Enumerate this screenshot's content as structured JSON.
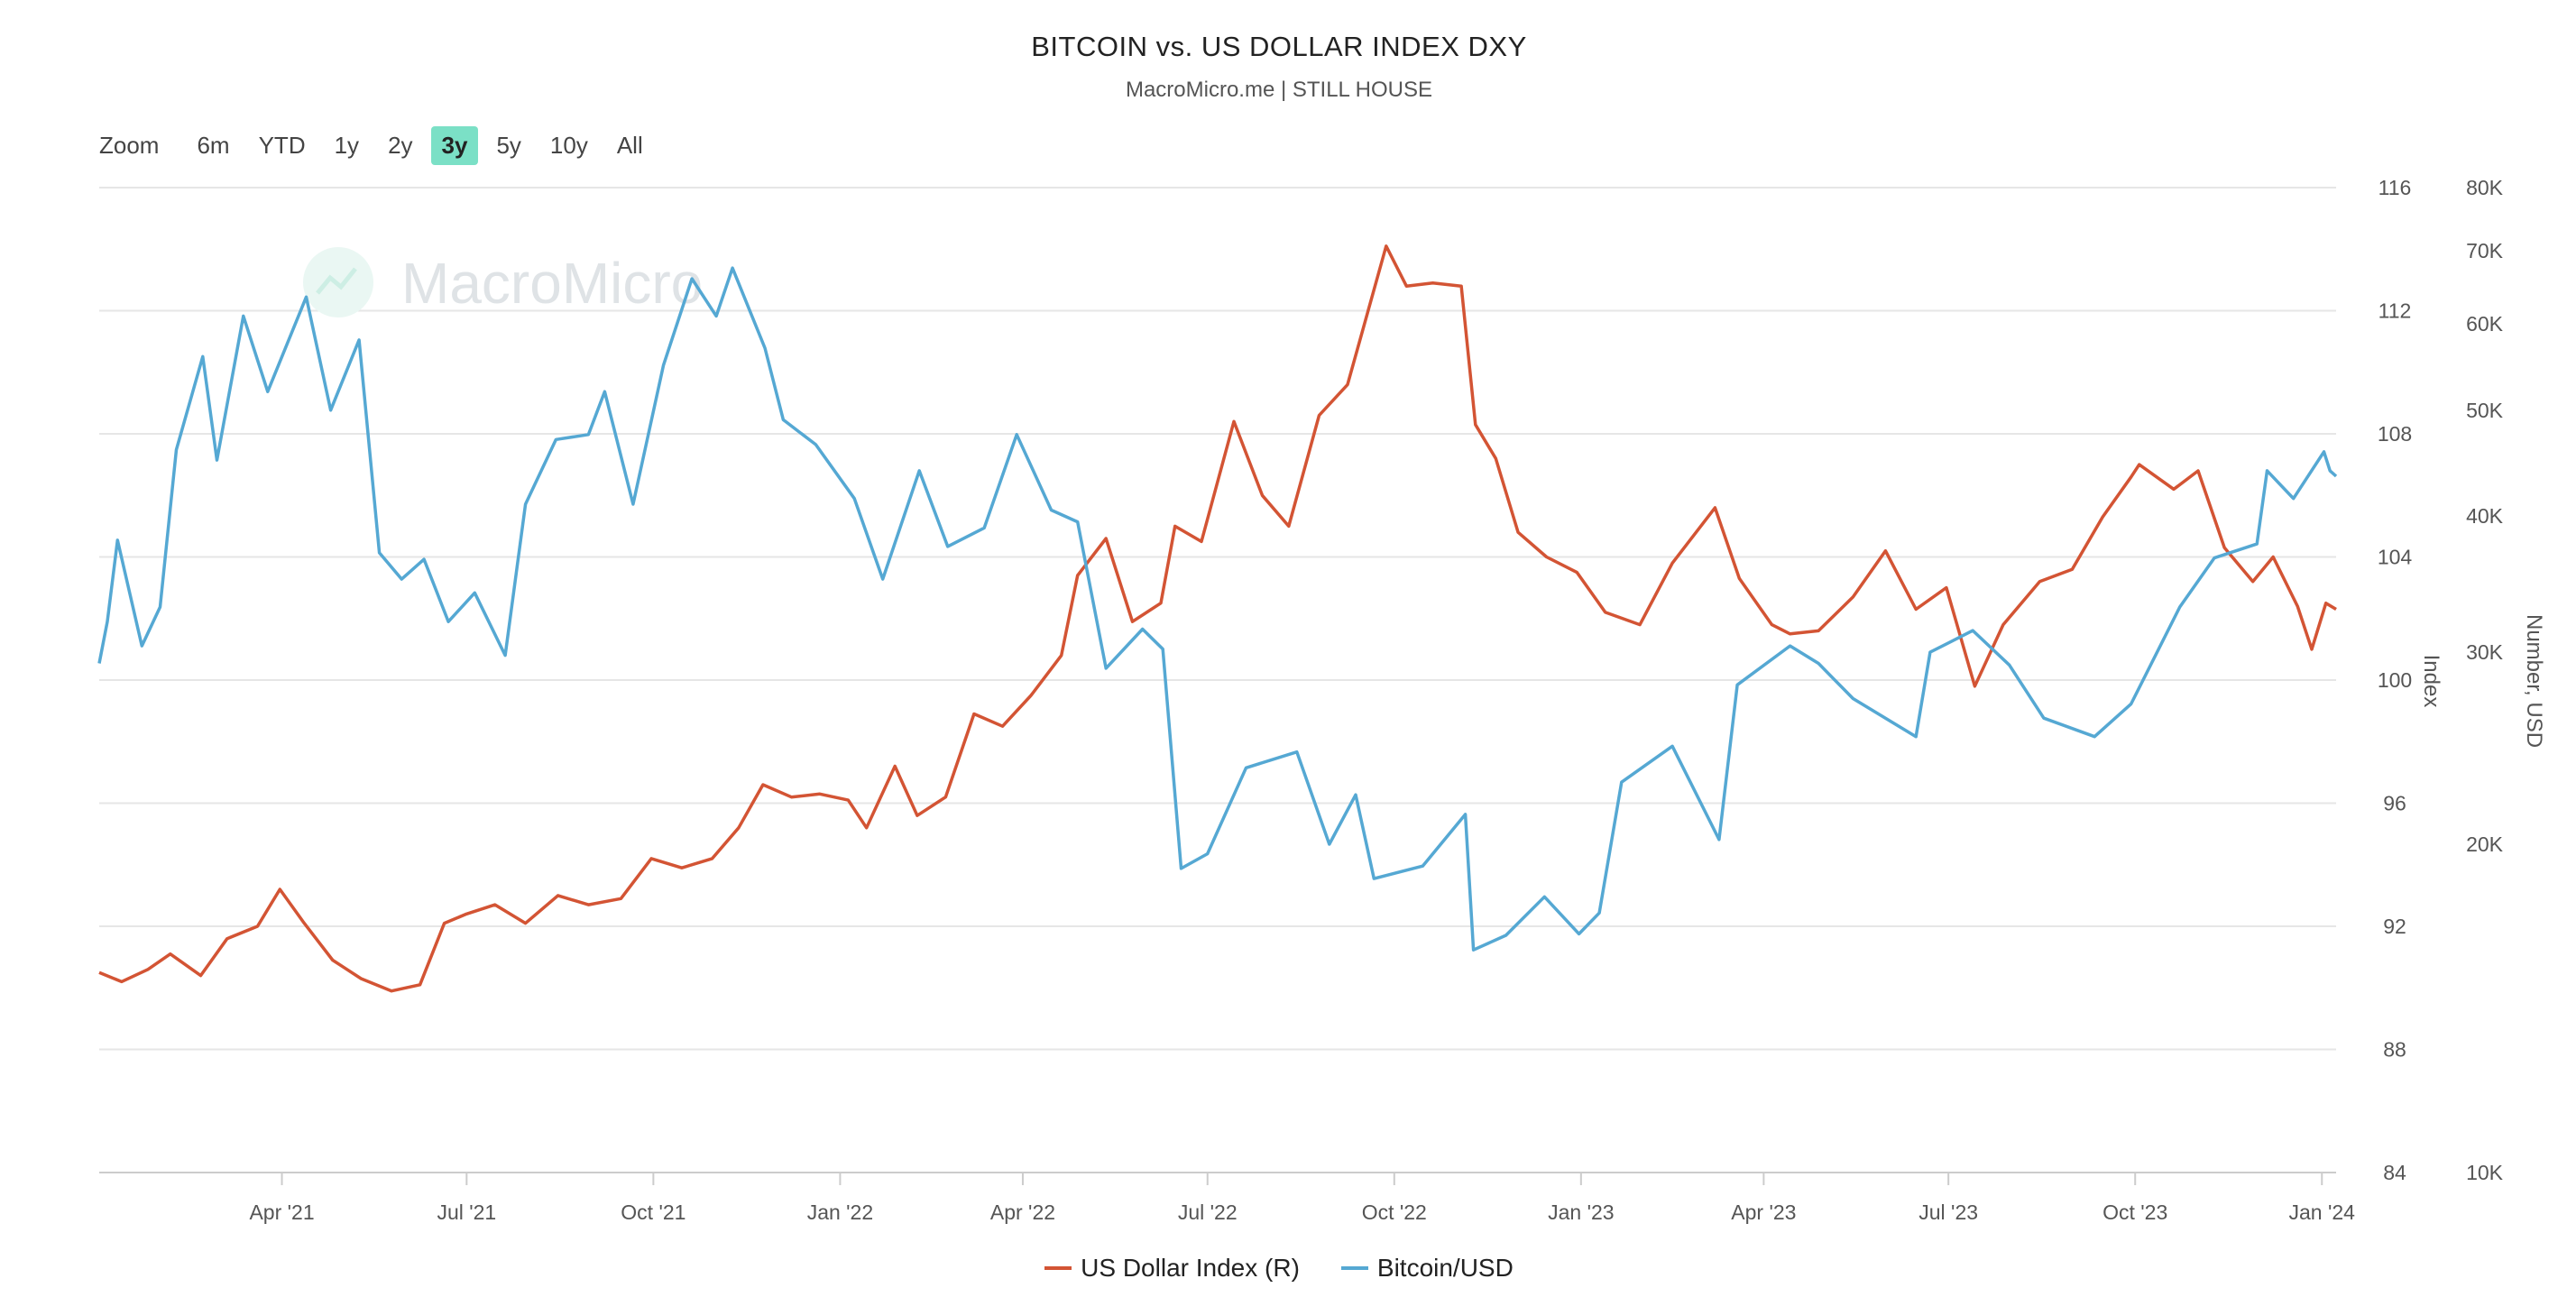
{
  "header": {
    "title": "BITCOIN vs. US DOLLAR INDEX DXY",
    "subtitle": "MacroMicro.me | STILL HOUSE"
  },
  "watermark": {
    "text": "MacroMicro",
    "icon": "macromicro-logo-icon"
  },
  "zoom": {
    "label": "Zoom",
    "options": [
      "6m",
      "YTD",
      "1y",
      "2y",
      "3y",
      "5y",
      "10y",
      "All"
    ],
    "selected": "3y"
  },
  "legend": [
    {
      "label": "US Dollar Index (R)",
      "color": "#d35434"
    },
    {
      "label": "Bitcoin/USD",
      "color": "#55a8d3"
    }
  ],
  "chart_data": {
    "type": "line",
    "x_ticks": [
      {
        "label": "Apr '21",
        "date": "2021-04-01"
      },
      {
        "label": "Jul '21",
        "date": "2021-07-01"
      },
      {
        "label": "Oct '21",
        "date": "2021-10-01"
      },
      {
        "label": "Jan '22",
        "date": "2022-01-01"
      },
      {
        "label": "Apr '22",
        "date": "2022-04-01"
      },
      {
        "label": "Jul '22",
        "date": "2022-07-01"
      },
      {
        "label": "Oct '22",
        "date": "2022-10-01"
      },
      {
        "label": "Jan '23",
        "date": "2023-01-01"
      },
      {
        "label": "Apr '23",
        "date": "2023-04-01"
      },
      {
        "label": "Jul '23",
        "date": "2023-07-01"
      },
      {
        "label": "Oct '23",
        "date": "2023-10-01"
      },
      {
        "label": "Jan '24",
        "date": "2024-01-01"
      }
    ],
    "xlim": [
      "2021-01-01",
      "2024-01-08"
    ],
    "y_left": {
      "title": "Index",
      "ticks": [
        84,
        88,
        92,
        96,
        100,
        104,
        108,
        112,
        116
      ],
      "range": [
        84,
        116
      ],
      "scale": "linear"
    },
    "y_right": {
      "title": "Number, USD",
      "ticks": [
        {
          "label": "10K",
          "value": 10000
        },
        {
          "label": "20K",
          "value": 20000
        },
        {
          "label": "30K",
          "value": 30000
        },
        {
          "label": "40K",
          "value": 40000
        },
        {
          "label": "50K",
          "value": 50000
        },
        {
          "label": "60K",
          "value": 60000
        },
        {
          "label": "70K",
          "value": 70000
        },
        {
          "label": "80K",
          "value": 80000
        }
      ],
      "range": [
        10000,
        80000
      ],
      "scale": "log"
    },
    "grid": true,
    "series": [
      {
        "name": "US Dollar Index (R)",
        "axis": "left",
        "color": "#d35434",
        "points": [
          [
            "2021-01-01",
            90.5
          ],
          [
            "2021-01-12",
            90.2
          ],
          [
            "2021-01-25",
            90.6
          ],
          [
            "2021-02-05",
            91.1
          ],
          [
            "2021-02-20",
            90.4
          ],
          [
            "2021-03-05",
            91.6
          ],
          [
            "2021-03-20",
            92.0
          ],
          [
            "2021-03-31",
            93.2
          ],
          [
            "2021-04-12",
            92.1
          ],
          [
            "2021-04-26",
            90.9
          ],
          [
            "2021-05-10",
            90.3
          ],
          [
            "2021-05-25",
            89.9
          ],
          [
            "2021-06-08",
            90.1
          ],
          [
            "2021-06-20",
            92.1
          ],
          [
            "2021-07-01",
            92.4
          ],
          [
            "2021-07-15",
            92.7
          ],
          [
            "2021-07-30",
            92.1
          ],
          [
            "2021-08-15",
            93.0
          ],
          [
            "2021-08-30",
            92.7
          ],
          [
            "2021-09-15",
            92.9
          ],
          [
            "2021-09-30",
            94.2
          ],
          [
            "2021-10-15",
            93.9
          ],
          [
            "2021-10-30",
            94.2
          ],
          [
            "2021-11-12",
            95.2
          ],
          [
            "2021-11-24",
            96.6
          ],
          [
            "2021-12-08",
            96.2
          ],
          [
            "2021-12-22",
            96.3
          ],
          [
            "2022-01-05",
            96.1
          ],
          [
            "2022-01-14",
            95.2
          ],
          [
            "2022-01-28",
            97.2
          ],
          [
            "2022-02-08",
            95.6
          ],
          [
            "2022-02-22",
            96.2
          ],
          [
            "2022-03-08",
            98.9
          ],
          [
            "2022-03-22",
            98.5
          ],
          [
            "2022-04-05",
            99.5
          ],
          [
            "2022-04-20",
            100.8
          ],
          [
            "2022-04-28",
            103.4
          ],
          [
            "2022-05-12",
            104.6
          ],
          [
            "2022-05-25",
            101.9
          ],
          [
            "2022-06-08",
            102.5
          ],
          [
            "2022-06-15",
            105.0
          ],
          [
            "2022-06-28",
            104.5
          ],
          [
            "2022-07-14",
            108.4
          ],
          [
            "2022-07-28",
            106.0
          ],
          [
            "2022-08-10",
            105.0
          ],
          [
            "2022-08-25",
            108.6
          ],
          [
            "2022-09-08",
            109.6
          ],
          [
            "2022-09-27",
            114.1
          ],
          [
            "2022-10-07",
            112.8
          ],
          [
            "2022-10-20",
            112.9
          ],
          [
            "2022-11-03",
            112.8
          ],
          [
            "2022-11-10",
            108.3
          ],
          [
            "2022-11-20",
            107.2
          ],
          [
            "2022-12-01",
            104.8
          ],
          [
            "2022-12-15",
            104.0
          ],
          [
            "2022-12-30",
            103.5
          ],
          [
            "2023-01-13",
            102.2
          ],
          [
            "2023-01-30",
            101.8
          ],
          [
            "2023-02-15",
            103.8
          ],
          [
            "2023-03-08",
            105.6
          ],
          [
            "2023-03-20",
            103.3
          ],
          [
            "2023-04-05",
            101.8
          ],
          [
            "2023-04-14",
            101.5
          ],
          [
            "2023-04-28",
            101.6
          ],
          [
            "2023-05-15",
            102.7
          ],
          [
            "2023-05-31",
            104.2
          ],
          [
            "2023-06-15",
            102.3
          ],
          [
            "2023-06-30",
            103.0
          ],
          [
            "2023-07-14",
            99.8
          ],
          [
            "2023-07-28",
            101.8
          ],
          [
            "2023-08-15",
            103.2
          ],
          [
            "2023-08-31",
            103.6
          ],
          [
            "2023-09-15",
            105.3
          ],
          [
            "2023-09-29",
            106.6
          ],
          [
            "2023-10-03",
            107.0
          ],
          [
            "2023-10-20",
            106.2
          ],
          [
            "2023-11-01",
            106.8
          ],
          [
            "2023-11-14",
            104.3
          ],
          [
            "2023-11-28",
            103.2
          ],
          [
            "2023-12-08",
            104.0
          ],
          [
            "2023-12-20",
            102.4
          ],
          [
            "2023-12-27",
            101.0
          ],
          [
            "2024-01-03",
            102.5
          ],
          [
            "2024-01-08",
            102.3
          ]
        ]
      },
      {
        "name": "Bitcoin/USD",
        "axis": "right",
        "color": "#55a8d3",
        "points": [
          [
            "2021-01-01",
            29300
          ],
          [
            "2021-01-05",
            32000
          ],
          [
            "2021-01-10",
            38000
          ],
          [
            "2021-01-22",
            30400
          ],
          [
            "2021-01-31",
            33000
          ],
          [
            "2021-02-08",
            46000
          ],
          [
            "2021-02-21",
            56000
          ],
          [
            "2021-02-28",
            45000
          ],
          [
            "2021-03-13",
            61000
          ],
          [
            "2021-03-25",
            52000
          ],
          [
            "2021-04-13",
            63500
          ],
          [
            "2021-04-25",
            50000
          ],
          [
            "2021-05-09",
            58000
          ],
          [
            "2021-05-19",
            37000
          ],
          [
            "2021-05-30",
            35000
          ],
          [
            "2021-06-10",
            36500
          ],
          [
            "2021-06-22",
            32000
          ],
          [
            "2021-07-05",
            34000
          ],
          [
            "2021-07-20",
            29800
          ],
          [
            "2021-07-30",
            41000
          ],
          [
            "2021-08-14",
            47000
          ],
          [
            "2021-08-30",
            47500
          ],
          [
            "2021-09-07",
            52000
          ],
          [
            "2021-09-21",
            41000
          ],
          [
            "2021-10-06",
            55000
          ],
          [
            "2021-10-20",
            66000
          ],
          [
            "2021-11-01",
            61000
          ],
          [
            "2021-11-09",
            67500
          ],
          [
            "2021-11-25",
            57000
          ],
          [
            "2021-12-04",
            49000
          ],
          [
            "2021-12-20",
            46500
          ],
          [
            "2022-01-08",
            41500
          ],
          [
            "2022-01-22",
            35000
          ],
          [
            "2022-02-09",
            44000
          ],
          [
            "2022-02-23",
            37500
          ],
          [
            "2022-03-13",
            39000
          ],
          [
            "2022-03-29",
            47500
          ],
          [
            "2022-04-15",
            40500
          ],
          [
            "2022-04-28",
            39500
          ],
          [
            "2022-05-12",
            29000
          ],
          [
            "2022-05-30",
            31500
          ],
          [
            "2022-06-09",
            30200
          ],
          [
            "2022-06-18",
            19000
          ],
          [
            "2022-07-01",
            19600
          ],
          [
            "2022-07-20",
            23500
          ],
          [
            "2022-08-14",
            24300
          ],
          [
            "2022-08-30",
            20000
          ],
          [
            "2022-09-12",
            22200
          ],
          [
            "2022-09-21",
            18600
          ],
          [
            "2022-10-15",
            19100
          ],
          [
            "2022-11-05",
            21300
          ],
          [
            "2022-11-09",
            16000
          ],
          [
            "2022-11-25",
            16500
          ],
          [
            "2022-12-14",
            17900
          ],
          [
            "2022-12-31",
            16550
          ],
          [
            "2023-01-10",
            17300
          ],
          [
            "2023-01-21",
            22800
          ],
          [
            "2023-02-15",
            24600
          ],
          [
            "2023-03-10",
            20200
          ],
          [
            "2023-03-19",
            28000
          ],
          [
            "2023-04-14",
            30400
          ],
          [
            "2023-04-28",
            29300
          ],
          [
            "2023-05-15",
            27200
          ],
          [
            "2023-06-15",
            25100
          ],
          [
            "2023-06-22",
            30000
          ],
          [
            "2023-07-13",
            31400
          ],
          [
            "2023-07-31",
            29200
          ],
          [
            "2023-08-17",
            26100
          ],
          [
            "2023-09-11",
            25100
          ],
          [
            "2023-09-29",
            26900
          ],
          [
            "2023-10-23",
            33000
          ],
          [
            "2023-11-09",
            36600
          ],
          [
            "2023-11-30",
            37700
          ],
          [
            "2023-12-05",
            44000
          ],
          [
            "2023-12-18",
            41500
          ],
          [
            "2024-01-02",
            45800
          ],
          [
            "2024-01-05",
            44000
          ],
          [
            "2024-01-08",
            43500
          ]
        ]
      }
    ]
  }
}
